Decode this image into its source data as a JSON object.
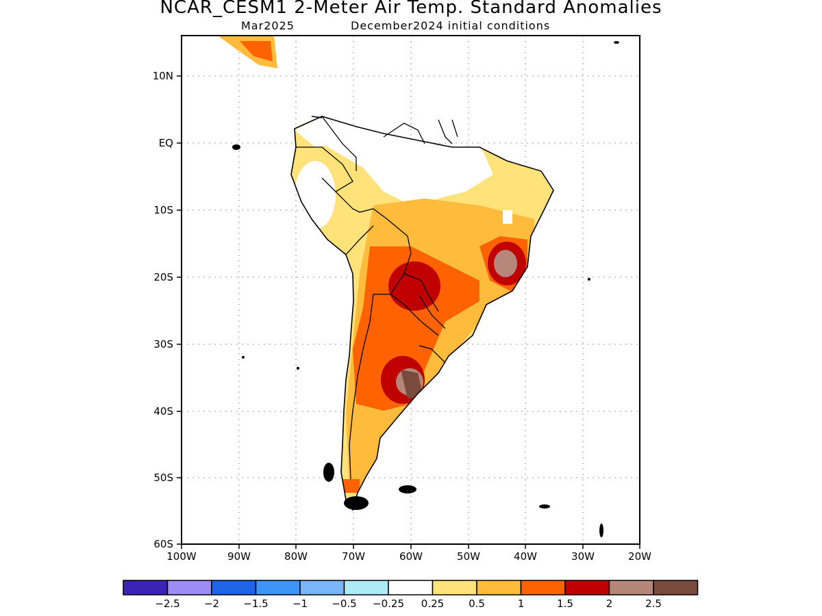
{
  "title": "NCAR_CESM1 2-Meter Air Temp. Standard Anomalies",
  "valid_month": "Mar2025",
  "init_text": "December2024 initial conditions",
  "lat_labels": [
    "10N",
    "EQ",
    "10S",
    "20S",
    "30S",
    "40S",
    "50S",
    "60S"
  ],
  "lon_labels": [
    "100W",
    "90W",
    "80W",
    "70W",
    "60W",
    "50W",
    "40W",
    "30W",
    "20W"
  ],
  "colorbar": {
    "colors": [
      "#3a23b5",
      "#9d8cf5",
      "#1f64e6",
      "#3d96f5",
      "#78b6f7",
      "#adebf6",
      "#ffffff",
      "#ffe27a",
      "#ffbb3c",
      "#ff6200",
      "#c00000",
      "#b5877a",
      "#7a4b3c"
    ],
    "labels": [
      "-2.5",
      "-2",
      "-1.5",
      "-1",
      "-0.5",
      "-0.25",
      "0.25",
      "0.5",
      "1",
      "1.5",
      "2",
      "2.5"
    ]
  },
  "region": "South America",
  "extent": {
    "lon": [
      -100,
      -20
    ],
    "lat": [
      -60,
      5
    ]
  }
}
